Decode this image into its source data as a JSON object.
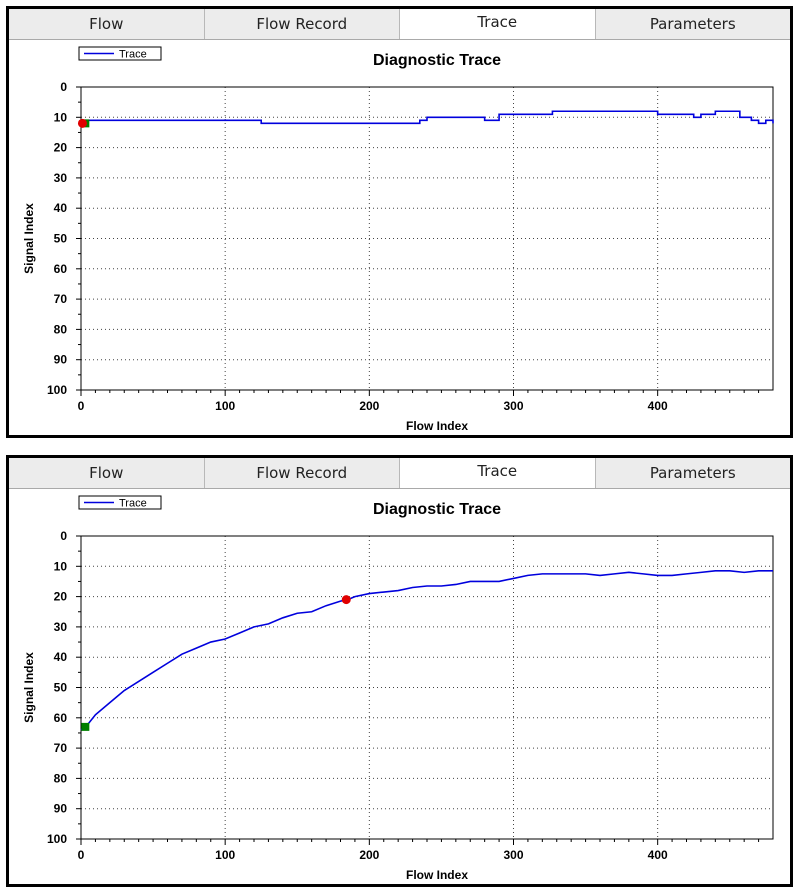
{
  "panels": [
    {
      "tabs": [
        {
          "label": "Flow",
          "active": false
        },
        {
          "label": "Flow Record",
          "active": false
        },
        {
          "label": "Trace",
          "active": true
        },
        {
          "label": "Parameters",
          "active": false
        }
      ],
      "chart_data": {
        "type": "line",
        "title": "Diagnostic Trace",
        "xlabel": "Flow Index",
        "ylabel": "Signal Index",
        "xlim": [
          0,
          480
        ],
        "ylim": [
          0,
          100
        ],
        "y_inverted": true,
        "xticks": [
          0,
          100,
          200,
          300,
          400
        ],
        "yticks": [
          0,
          10,
          20,
          30,
          40,
          50,
          60,
          70,
          80,
          90,
          100
        ],
        "grid": "dotted",
        "legend": {
          "position": "top-left",
          "entries": [
            "Trace"
          ]
        },
        "series": [
          {
            "name": "Trace",
            "color": "#0000dd",
            "step": true,
            "x": [
              0,
              115,
              125,
              235,
              240,
              275,
              280,
              290,
              325,
              327,
              390,
              400,
              425,
              430,
              440,
              450,
              457,
              465,
              470,
              475,
              480
            ],
            "y": [
              11,
              11,
              12,
              11,
              10,
              10,
              11,
              9,
              9,
              8,
              8,
              9,
              10,
              9,
              8,
              8,
              10,
              11,
              12,
              11,
              12
            ]
          }
        ],
        "markers": [
          {
            "kind": "start",
            "shape": "square",
            "color": "#008000",
            "x": 3,
            "y": 12
          },
          {
            "kind": "current",
            "shape": "circle",
            "color": "#e00000",
            "x": 1,
            "y": 12
          }
        ]
      }
    },
    {
      "tabs": [
        {
          "label": "Flow",
          "active": false
        },
        {
          "label": "Flow Record",
          "active": false
        },
        {
          "label": "Trace",
          "active": true
        },
        {
          "label": "Parameters",
          "active": false
        }
      ],
      "chart_data": {
        "type": "line",
        "title": "Diagnostic Trace",
        "xlabel": "Flow Index",
        "ylabel": "Signal Index",
        "xlim": [
          0,
          480
        ],
        "ylim": [
          0,
          100
        ],
        "y_inverted": true,
        "xticks": [
          0,
          100,
          200,
          300,
          400
        ],
        "yticks": [
          0,
          10,
          20,
          30,
          40,
          50,
          60,
          70,
          80,
          90,
          100
        ],
        "grid": "dotted",
        "legend": {
          "position": "top-left",
          "entries": [
            "Trace"
          ]
        },
        "series": [
          {
            "name": "Trace",
            "color": "#0000dd",
            "step": false,
            "x": [
              0,
              5,
              10,
              20,
              30,
              40,
              50,
              60,
              70,
              80,
              90,
              100,
              110,
              120,
              130,
              140,
              150,
              160,
              170,
              180,
              185,
              190,
              200,
              210,
              220,
              230,
              240,
              250,
              260,
              270,
              280,
              290,
              300,
              310,
              320,
              330,
              340,
              350,
              360,
              370,
              380,
              390,
              400,
              410,
              420,
              430,
              440,
              450,
              460,
              470,
              480
            ],
            "y": [
              64,
              62,
              59,
              55,
              51,
              48,
              45,
              42,
              39,
              37,
              35,
              34,
              32,
              30,
              29,
              27,
              25.5,
              25,
              23,
              21.5,
              21,
              20,
              19,
              18.5,
              18,
              17,
              16.5,
              16.5,
              16,
              15,
              15,
              15,
              14,
              13,
              12.5,
              12.5,
              12.5,
              12.5,
              13,
              12.5,
              12,
              12.5,
              13,
              13,
              12.5,
              12,
              11.5,
              11.5,
              12,
              11.5,
              11.5
            ]
          }
        ],
        "markers": [
          {
            "kind": "start",
            "shape": "square",
            "color": "#008000",
            "x": 3,
            "y": 63
          },
          {
            "kind": "current",
            "shape": "circle",
            "color": "#e00000",
            "x": 184,
            "y": 21
          }
        ]
      }
    }
  ]
}
